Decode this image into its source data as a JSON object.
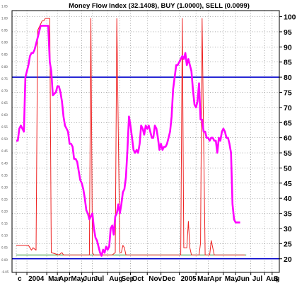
{
  "chart_data": {
    "type": "line",
    "title": "Money Flow Index (32.1408), BUY (1.0000), SELL (0.0099)",
    "x": [
      0,
      1,
      2,
      3,
      4,
      5,
      6,
      7,
      8,
      9,
      10,
      11,
      12,
      13,
      14,
      15,
      16,
      17,
      18,
      19,
      20,
      21,
      22,
      23,
      24,
      25,
      26,
      27,
      28,
      29,
      30,
      31,
      32,
      33,
      34,
      35,
      36,
      37,
      38,
      39,
      40,
      41,
      42,
      43,
      44,
      45,
      46,
      47,
      48,
      49,
      50,
      51,
      52,
      53,
      54,
      55,
      56,
      57,
      58,
      59,
      60,
      61,
      62,
      63,
      64,
      65,
      66,
      67,
      68,
      69,
      70,
      71,
      72,
      73,
      74,
      75,
      76,
      77,
      78,
      79,
      80,
      81,
      82,
      83,
      84,
      85,
      86,
      87,
      88,
      89,
      90,
      91,
      92,
      93,
      94,
      95,
      96,
      97,
      98,
      99,
      100,
      101,
      102,
      103,
      104,
      105,
      106,
      107,
      108,
      109,
      110,
      111,
      112,
      113,
      114,
      115,
      116,
      117,
      118,
      119,
      120,
      121,
      122,
      123,
      124,
      125,
      126,
      127,
      128,
      129,
      130,
      131,
      132,
      133,
      134,
      135,
      136,
      137,
      138,
      139,
      140,
      141,
      142,
      143,
      144,
      145,
      146,
      147,
      148,
      149,
      150,
      151,
      152,
      153,
      154,
      155,
      156,
      157,
      158,
      159,
      160,
      161,
      162,
      163,
      164,
      165,
      166,
      167,
      168,
      169
    ],
    "x_ticks": [
      {
        "x": 0,
        "label": "c"
      },
      {
        "x": 7,
        "label": "2004"
      },
      {
        "x": 20,
        "label": "Mar"
      },
      {
        "x": 27,
        "label": "Apr"
      },
      {
        "x": 35,
        "label": "May"
      },
      {
        "x": 43,
        "label": "Jun"
      },
      {
        "x": 50,
        "label": "Jul"
      },
      {
        "x": 60,
        "label": "Aug"
      },
      {
        "x": 68,
        "label": "Sep"
      },
      {
        "x": 75,
        "label": "Oct"
      },
      {
        "x": 86,
        "label": "Nov"
      },
      {
        "x": 95,
        "label": "Dec"
      },
      {
        "x": 107,
        "label": "2005"
      },
      {
        "x": 118,
        "label": "Mar"
      },
      {
        "x": 126,
        "label": "Apr"
      },
      {
        "x": 136,
        "label": "May"
      },
      {
        "x": 144,
        "label": "Jun"
      },
      {
        "x": 154,
        "label": "Jul"
      },
      {
        "x": 163,
        "label": "Aug"
      },
      {
        "x": 168,
        "label": "S"
      }
    ],
    "y_right": {
      "range": [
        15.5,
        102
      ],
      "ticks": [
        20,
        25,
        30,
        35,
        40,
        45,
        50,
        55,
        60,
        65,
        70,
        75,
        80,
        85,
        90,
        95,
        100
      ]
    },
    "y_left": {
      "range": [
        -0.052,
        1.0324
      ],
      "ticks": [
        "1.05",
        "1.00",
        "0.95",
        "0.90",
        "0.85",
        "0.80",
        "0.75",
        "0.70",
        "0.65",
        "0.60",
        "0.55",
        "0.50",
        "0.45",
        "0.40",
        "0.35",
        "0.30",
        "0.25",
        "0.20",
        "0.15",
        "0.10",
        "0.05",
        "0.00",
        "-0.05"
      ]
    },
    "reference_lines": [
      {
        "value": 80,
        "axis": "right",
        "color": "#0000cc"
      },
      {
        "value": 20,
        "axis": "right",
        "color": "#0000cc"
      }
    ],
    "series": [
      {
        "color": "#ff00ff",
        "axis": "right",
        "width": 2.6,
        "x": [
          0,
          1,
          2,
          3,
          4,
          5,
          6,
          7,
          8,
          9,
          10,
          11,
          12,
          13,
          14,
          15,
          16,
          17,
          18,
          19,
          20,
          21,
          22,
          23,
          24,
          25,
          26,
          27,
          28,
          29,
          30,
          31,
          32,
          33,
          34,
          35,
          36,
          37,
          38,
          39,
          40,
          41,
          42,
          43,
          44,
          45,
          46,
          47,
          48,
          49,
          50,
          51,
          52,
          53,
          54,
          55,
          56,
          57,
          58,
          59,
          60,
          61,
          62,
          63,
          64,
          65,
          66,
          67,
          68,
          69,
          70,
          71,
          72,
          73,
          74,
          75,
          76,
          77,
          78,
          79,
          80,
          81,
          82,
          83,
          84,
          85,
          86,
          87,
          88,
          89,
          90,
          91,
          92,
          93,
          94,
          95,
          96,
          97,
          98,
          99,
          100,
          101,
          102,
          103,
          104,
          105,
          106,
          107,
          108,
          109,
          110,
          111,
          112,
          113,
          114,
          115,
          116,
          117,
          118,
          119,
          120,
          121,
          122,
          123,
          124,
          125,
          126,
          127,
          128,
          129,
          130,
          131,
          132,
          133,
          134,
          135,
          136,
          137,
          138,
          139,
          140,
          141,
          142,
          143,
          144,
          145,
          146,
          147
        ],
        "values": [
          59,
          59,
          63,
          64,
          63,
          62,
          80,
          82,
          84,
          87,
          88,
          88,
          89,
          91,
          93,
          95,
          97,
          97,
          97,
          97,
          97,
          97,
          85,
          82,
          74,
          74.5,
          75,
          77,
          77,
          75,
          72,
          67,
          64,
          63,
          62,
          58,
          58,
          57,
          53,
          53,
          52,
          49,
          46,
          45,
          43,
          40,
          36,
          35,
          33,
          34,
          35,
          30,
          27,
          26,
          24,
          22,
          21,
          23,
          22,
          24,
          23,
          24,
          30,
          31,
          28,
          34,
          35,
          38,
          35,
          38,
          42,
          43,
          47,
          56,
          67,
          64,
          60,
          56,
          55,
          56,
          55,
          58,
          64,
          63,
          61,
          64,
          63,
          64,
          62,
          60,
          60,
          64,
          63,
          60,
          56,
          58,
          56,
          57,
          57,
          58,
          60,
          62,
          67,
          76,
          80,
          84,
          84,
          85,
          86,
          87,
          86,
          88,
          84,
          86,
          84,
          82,
          76,
          71,
          70,
          72,
          78,
          66,
          66,
          62,
          62,
          60,
          60,
          59,
          60,
          60,
          59,
          59,
          55,
          60,
          59,
          62,
          63,
          62,
          60,
          60,
          58,
          55,
          38,
          33,
          32,
          32,
          32,
          32
        ]
      },
      {
        "color": "#ee2222",
        "axis": "left",
        "width": 1,
        "x": [
          0,
          8,
          9,
          10,
          11,
          13,
          14,
          17,
          18,
          19,
          20,
          22,
          23,
          28,
          30,
          31,
          32,
          35,
          40,
          45,
          48,
          49,
          50,
          51,
          52,
          53,
          54,
          55,
          60,
          63,
          65,
          66,
          68,
          69,
          70,
          71,
          72,
          75,
          78,
          80,
          82,
          85,
          87,
          88,
          90,
          92,
          93,
          95,
          98,
          100,
          102,
          104,
          106,
          108,
          109,
          110,
          112,
          113,
          114,
          115,
          117,
          118,
          120,
          121,
          122,
          124,
          125,
          127,
          128,
          130,
          131,
          133,
          135,
          137,
          140,
          142,
          143,
          145,
          147,
          148,
          150
        ],
        "values": [
          0.06,
          0.06,
          0.05,
          0.04,
          0.05,
          0.04,
          0.95,
          0.99,
          0.99,
          1.0,
          1.0,
          1.0,
          0.03,
          0.02,
          0.03,
          0.02,
          0.02,
          0.02,
          0.02,
          0.02,
          0.02,
          1.0,
          0.03,
          0.02,
          0.02,
          0.02,
          0.02,
          0.02,
          0.02,
          0.02,
          0.03,
          1.0,
          0.03,
          0.03,
          0.06,
          0.05,
          0.02,
          0.02,
          0.02,
          0.02,
          0.02,
          0.02,
          0.02,
          0.02,
          0.02,
          0.02,
          0.02,
          0.02,
          0.02,
          0.02,
          0.02,
          0.02,
          0.02,
          0.02,
          1.0,
          0.05,
          0.05,
          0.16,
          0.05,
          0.02,
          0.02,
          0.02,
          0.02,
          0.07,
          1.0,
          0.02,
          0.02,
          0.02,
          0.08,
          0.02,
          0.02,
          0.02,
          0.02,
          0.02,
          0.02,
          0.02,
          0.02,
          0.02,
          0.02,
          0.02,
          0.02
        ]
      },
      {
        "color": "#228822",
        "axis": "left",
        "width": 1,
        "x": [
          0,
          8,
          10,
          12,
          16,
          19,
          22,
          25,
          28,
          30,
          33,
          35,
          38,
          40,
          41,
          42,
          43,
          44,
          45,
          47,
          48,
          50,
          55,
          60,
          64,
          66,
          69,
          73,
          74,
          75,
          76,
          79,
          82,
          85,
          89,
          90,
          91,
          92,
          93,
          95,
          96,
          100,
          103,
          106,
          109,
          111,
          116,
          117,
          118,
          119,
          120,
          121,
          122,
          123,
          124,
          125,
          126,
          127,
          128,
          129,
          130,
          131,
          133,
          134,
          135,
          136,
          137,
          138,
          139,
          140,
          141,
          142,
          143,
          144,
          145,
          146,
          147,
          148,
          149,
          150,
          151
        ],
        "values": [
          0.02,
          0.02,
          0.02,
          0.02,
          0.02,
          0.02,
          0.02,
          0.02,
          0.02,
          0.02,
          0.02,
          0.02,
          0.02,
          0.02,
          0.02,
          0.02,
          0.02,
          0.02,
          0.02,
          0.02,
          0.02,
          0.02,
          0.02,
          0.02,
          0.02,
          0.02,
          0.02,
          0.02,
          0.02,
          0.02,
          0.02,
          0.02,
          0.02,
          0.02,
          0.02,
          0.02,
          0.02,
          0.02,
          0.02,
          0.02,
          0.02,
          0.02,
          0.02,
          0.02,
          0.02,
          0.02,
          0.02,
          0.02,
          0.02,
          0.02,
          0.02,
          0.02,
          0.02,
          0.02,
          0.02,
          0.02,
          0.02,
          0.02,
          0.02,
          0.02,
          0.02,
          0.02,
          0.02,
          0.02,
          0.02,
          0.02,
          0.02,
          0.02,
          0.02,
          0.02,
          0.02,
          0.02,
          0.02,
          0.02,
          0.02,
          0.02,
          0.02,
          0.02,
          0.02,
          0.02,
          0.02
        ]
      }
    ]
  }
}
